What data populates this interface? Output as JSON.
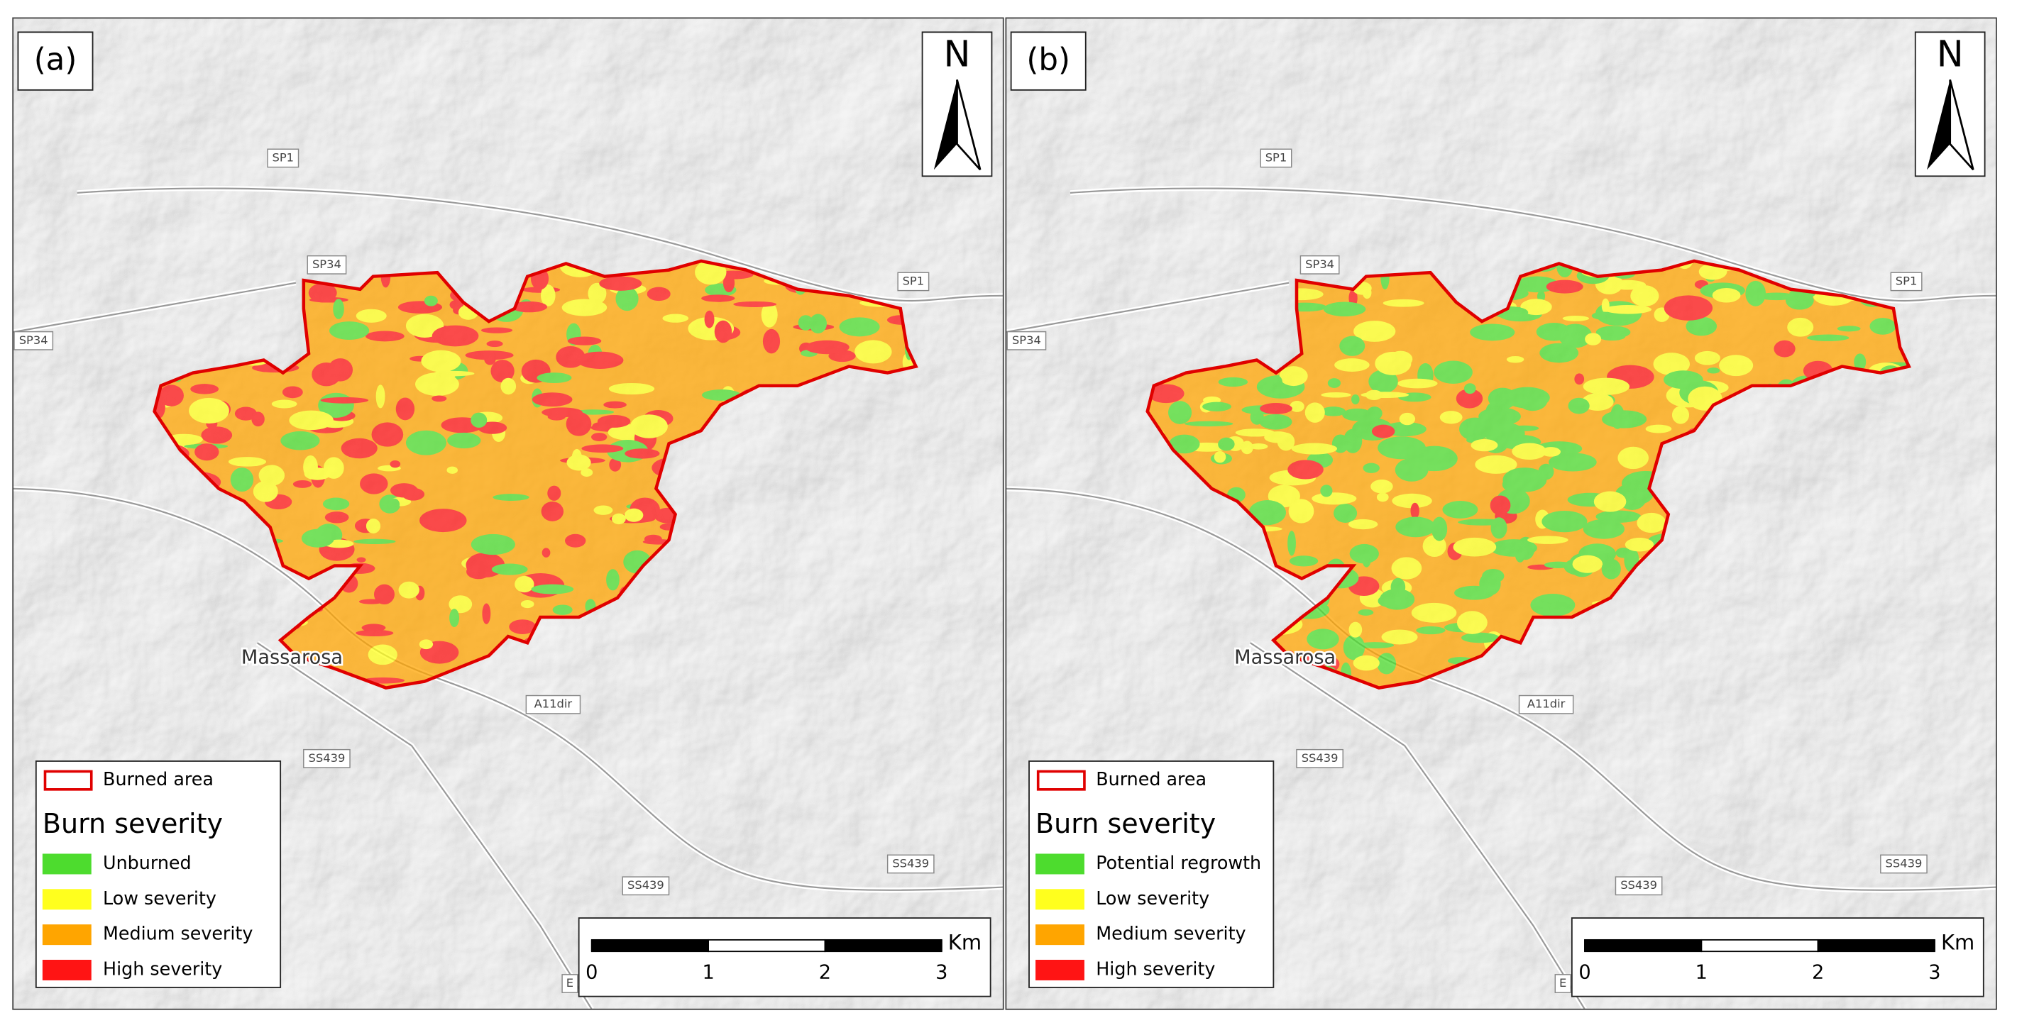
{
  "panels": [
    {
      "label": "(a)",
      "north": "N",
      "town": "Massarosa",
      "roads": [
        "SP1",
        "SP34",
        "SP34",
        "SP1",
        "A11dir",
        "SS439",
        "SS439",
        "SS439",
        "E"
      ],
      "legend": {
        "outline": "Burned area",
        "title": "Burn severity",
        "classes": [
          {
            "name": "Unburned",
            "color": "#4ddc2e"
          },
          {
            "name": "Low severity",
            "color": "#ffff1e"
          },
          {
            "name": "Medium severity",
            "color": "#ffa500"
          },
          {
            "name": "High severity",
            "color": "#ff1414"
          }
        ]
      },
      "scale": {
        "unit": "Km",
        "ticks": [
          0,
          1,
          2,
          3
        ]
      }
    },
    {
      "label": "(b)",
      "north": "N",
      "town": "Massarosa",
      "roads": [
        "SP1",
        "SP34",
        "SP34",
        "SP1",
        "A11dir",
        "SS439",
        "SS439",
        "SS439",
        "E"
      ],
      "legend": {
        "outline": "Burned area",
        "title": "Burn severity",
        "classes": [
          {
            "name": "Potential regrowth",
            "color": "#4ddc2e"
          },
          {
            "name": "Low severity",
            "color": "#ffff1e"
          },
          {
            "name": "Medium severity",
            "color": "#ffa500"
          },
          {
            "name": "High severity",
            "color": "#ff1414"
          }
        ]
      },
      "scale": {
        "unit": "Km",
        "ticks": [
          0,
          1,
          2,
          3
        ]
      }
    }
  ]
}
